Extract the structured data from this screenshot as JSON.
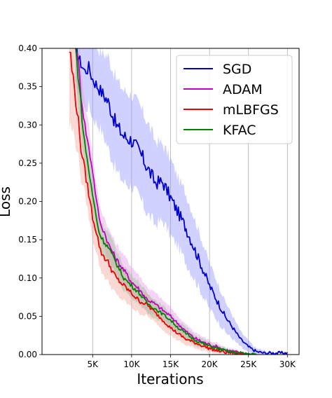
{
  "chart_data": {
    "type": "line",
    "title": "",
    "xlabel": "Iterations",
    "ylabel": "Loss",
    "xlim": [
      -1500,
      31500
    ],
    "ylim": [
      0,
      0.4
    ],
    "x_ticks": [
      5000,
      10000,
      15000,
      20000,
      25000,
      30000
    ],
    "x_tick_labels": [
      "5K",
      "10K",
      "15K",
      "20K",
      "25K",
      "30K"
    ],
    "y_ticks": [
      0,
      0.05,
      0.1,
      0.15,
      0.2,
      0.25,
      0.3,
      0.35,
      0.4
    ],
    "y_tick_labels": [
      "0.00",
      "0.05",
      "0.10",
      "0.15",
      "0.20",
      "0.25",
      "0.30",
      "0.35",
      "0.40"
    ],
    "grid": "vertical lines at x ticks",
    "legend_position": "top-right",
    "shaded_band": "mean ± variability",
    "series": [
      {
        "name": "SGD",
        "color": "#0000cc",
        "band_color": "#9999ff",
        "x": [
          2800,
          3500,
          4000,
          4500,
          5000,
          6000,
          7000,
          8000,
          9000,
          10000,
          11000,
          12000,
          13000,
          14000,
          15000,
          16000,
          17000,
          18000,
          19000,
          20000,
          21000,
          22000,
          23000,
          24000,
          25000,
          26000,
          27000,
          28000,
          29000,
          30000
        ],
        "y": [
          0.4,
          0.38,
          0.37,
          0.375,
          0.36,
          0.345,
          0.33,
          0.3,
          0.285,
          0.28,
          0.265,
          0.245,
          0.225,
          0.225,
          0.205,
          0.185,
          0.165,
          0.14,
          0.115,
          0.09,
          0.07,
          0.05,
          0.035,
          0.02,
          0.01,
          0.004,
          0.002,
          0.002,
          0.002,
          0.002
        ],
        "band": [
          0.05,
          0.04,
          0.05,
          0.05,
          0.05,
          0.05,
          0.06,
          0.06,
          0.06,
          0.06,
          0.06,
          0.06,
          0.055,
          0.05,
          0.05,
          0.045,
          0.045,
          0.04,
          0.035,
          0.03,
          0.025,
          0.02,
          0.015,
          0.01,
          0.008,
          0.004,
          0.003,
          0.002,
          0.002,
          0.002
        ]
      },
      {
        "name": "ADAM",
        "color": "#c000c0",
        "band_color": "#e6a0e6",
        "x": [
          3000,
          3500,
          4000,
          4500,
          5000,
          5500,
          6000,
          6500,
          7000,
          8000,
          9000,
          10000,
          11000,
          12000,
          13000,
          14000,
          15000,
          16000,
          17000,
          18000,
          19000,
          20000,
          21000,
          22000,
          23000,
          24000,
          25000,
          26000
        ],
        "y": [
          0.4,
          0.34,
          0.3,
          0.27,
          0.24,
          0.2,
          0.17,
          0.16,
          0.145,
          0.125,
          0.11,
          0.095,
          0.085,
          0.072,
          0.066,
          0.058,
          0.05,
          0.04,
          0.03,
          0.022,
          0.017,
          0.013,
          0.01,
          0.006,
          0.004,
          0.002,
          0.001,
          0.0
        ],
        "band": [
          0.04,
          0.04,
          0.03,
          0.03,
          0.02,
          0.02,
          0.02,
          0.02,
          0.02,
          0.02,
          0.02,
          0.02,
          0.018,
          0.016,
          0.015,
          0.013,
          0.012,
          0.01,
          0.009,
          0.008,
          0.007,
          0.006,
          0.005,
          0.004,
          0.003,
          0.002,
          0.001,
          0.0
        ]
      },
      {
        "name": "mLBFGS",
        "color": "#ee0000",
        "band_color": "#f4a8a0",
        "x": [
          2000,
          2500,
          3000,
          3500,
          4000,
          4500,
          5000,
          5500,
          6000,
          7000,
          8000,
          9000,
          10000,
          11000,
          12000,
          13000,
          14000,
          15000,
          16000,
          17000,
          18000,
          19000,
          20000,
          21000,
          22000,
          23000,
          24000,
          25000
        ],
        "y": [
          0.4,
          0.36,
          0.32,
          0.27,
          0.24,
          0.21,
          0.18,
          0.16,
          0.135,
          0.12,
          0.1,
          0.09,
          0.08,
          0.07,
          0.065,
          0.055,
          0.045,
          0.035,
          0.027,
          0.02,
          0.016,
          0.012,
          0.008,
          0.005,
          0.003,
          0.002,
          0.001,
          0.0
        ],
        "band": [
          0.1,
          0.07,
          0.05,
          0.04,
          0.03,
          0.03,
          0.03,
          0.025,
          0.025,
          0.025,
          0.022,
          0.02,
          0.018,
          0.016,
          0.015,
          0.013,
          0.012,
          0.01,
          0.009,
          0.008,
          0.007,
          0.006,
          0.005,
          0.004,
          0.003,
          0.002,
          0.001,
          0.0
        ]
      },
      {
        "name": "KFAC",
        "color": "#008000",
        "band_color": "#99c299",
        "x": [
          2800,
          3300,
          3800,
          4300,
          4800,
          5300,
          5800,
          6300,
          7000,
          8000,
          9000,
          10000,
          11000,
          12000,
          13000,
          14000,
          15000,
          16000,
          17000,
          18000,
          19000,
          20000,
          21000,
          22000,
          23000,
          24000,
          25000,
          26000
        ],
        "y": [
          0.4,
          0.35,
          0.29,
          0.255,
          0.22,
          0.19,
          0.16,
          0.15,
          0.14,
          0.12,
          0.1,
          0.09,
          0.08,
          0.067,
          0.06,
          0.053,
          0.045,
          0.035,
          0.027,
          0.02,
          0.015,
          0.011,
          0.008,
          0.005,
          0.003,
          0.002,
          0.001,
          0.0
        ],
        "band": [
          0.04,
          0.04,
          0.03,
          0.025,
          0.02,
          0.02,
          0.02,
          0.02,
          0.02,
          0.018,
          0.016,
          0.015,
          0.014,
          0.013,
          0.012,
          0.011,
          0.01,
          0.009,
          0.008,
          0.007,
          0.006,
          0.005,
          0.004,
          0.003,
          0.002,
          0.001,
          0.001,
          0.0
        ]
      }
    ]
  }
}
